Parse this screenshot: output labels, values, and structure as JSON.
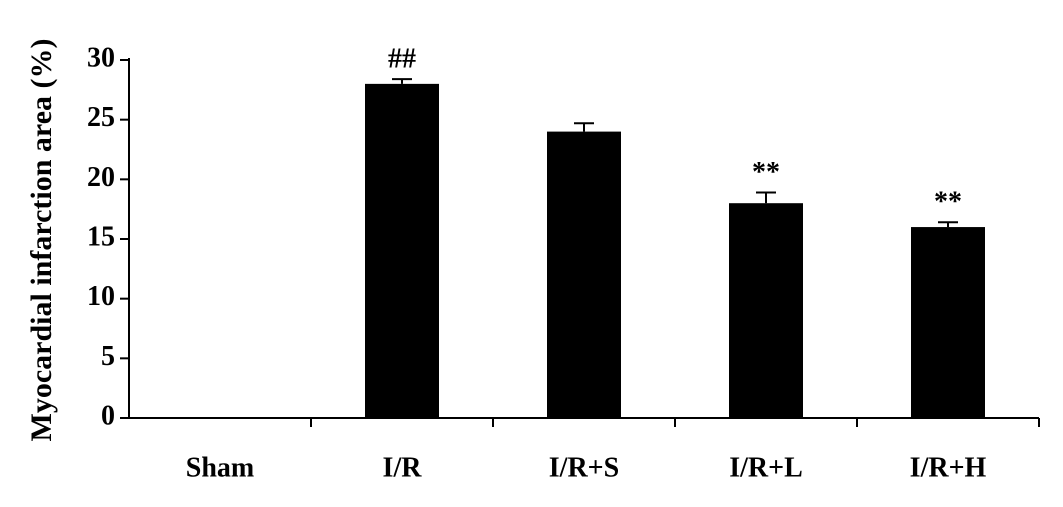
{
  "chart_data": {
    "type": "bar",
    "ylabel": "Myocardial infarction area (%)",
    "categories": [
      "Sham",
      "I/R",
      "I/R+S",
      "I/R+L",
      "I/R+H"
    ],
    "values": [
      0,
      28,
      24,
      18,
      16
    ],
    "errors": [
      null,
      0.4,
      0.7,
      0.9,
      0.4
    ],
    "annotations": [
      null,
      "##",
      null,
      "**",
      "**"
    ],
    "color": "#000000",
    "ylim": [
      0,
      30
    ],
    "yticks": [
      0,
      5,
      10,
      15,
      20,
      25,
      30
    ],
    "grid": false
  }
}
